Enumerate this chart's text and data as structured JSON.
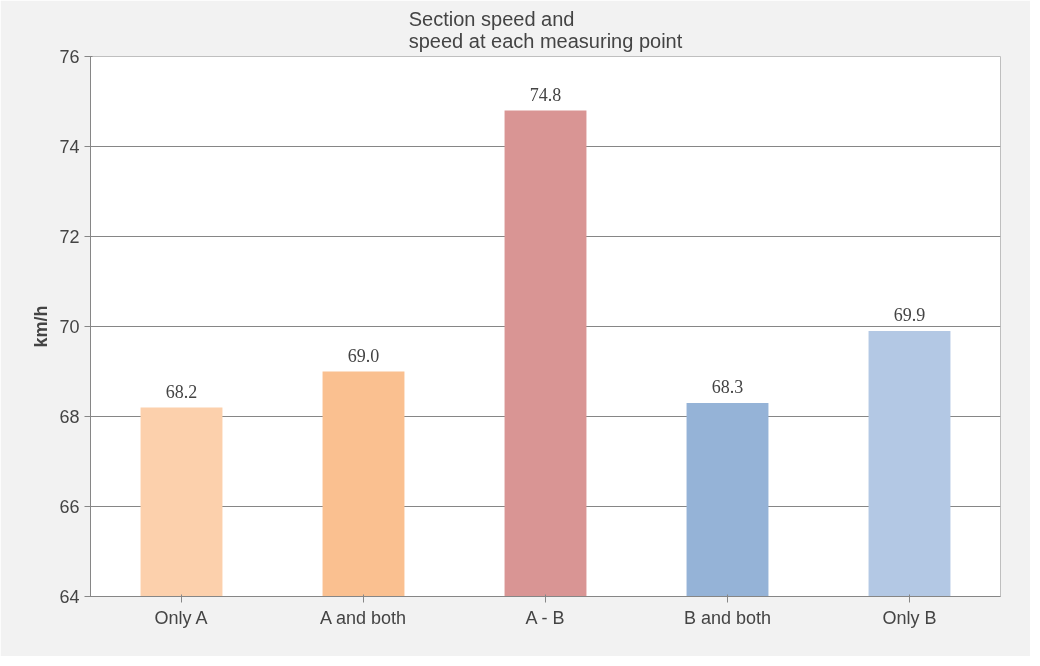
{
  "chart_data": {
    "type": "bar",
    "title": "Section speed and\nspeed at each measuring point",
    "ylabel": "km/h",
    "categories": [
      "Only A",
      "A and both",
      "A - B",
      "B and both",
      "Only B"
    ],
    "values": [
      68.2,
      69.0,
      74.8,
      68.3,
      69.9
    ],
    "value_labels": [
      "68.2",
      "69.0",
      "74.8",
      "68.3",
      "69.9"
    ],
    "colors": [
      "#fcd0ac",
      "#fac090",
      "#d99594",
      "#95b3d7",
      "#b3c8e4"
    ],
    "ylim": [
      64,
      76
    ],
    "yticks": [
      64,
      66,
      68,
      70,
      72,
      74,
      76
    ],
    "grid": "y"
  }
}
